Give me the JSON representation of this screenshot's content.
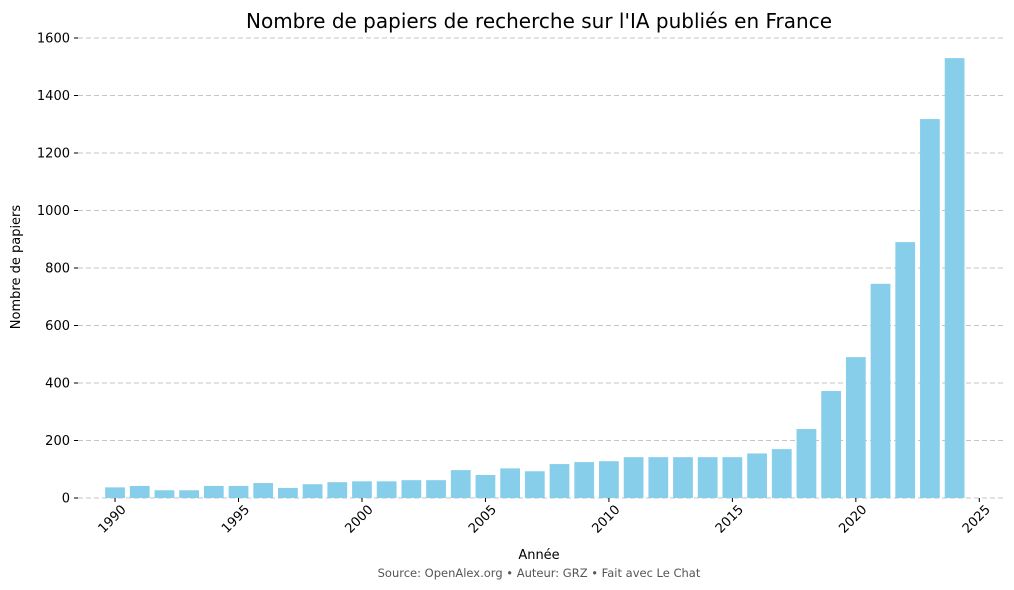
{
  "chart_data": {
    "type": "bar",
    "title": "Nombre de papiers de recherche sur l'IA publiés en France",
    "xlabel": "Année",
    "ylabel": "Nombre de papiers",
    "source": "Source: OpenAlex.org • Auteur: GRZ • Fait avec Le Chat",
    "color": "#87CEEB",
    "grid": "horizontal dashed",
    "ylim": [
      0,
      1600
    ],
    "xlim": [
      1988.5,
      2026
    ],
    "yticks": [
      0,
      200,
      400,
      600,
      800,
      1000,
      1200,
      1400,
      1600
    ],
    "xticks": [
      1990,
      1995,
      2000,
      2005,
      2010,
      2015,
      2020,
      2025
    ],
    "x": [
      1990,
      1991,
      1992,
      1993,
      1994,
      1995,
      1996,
      1997,
      1998,
      1999,
      2000,
      2001,
      2002,
      2003,
      2004,
      2005,
      2006,
      2007,
      2008,
      2009,
      2010,
      2011,
      2012,
      2013,
      2014,
      2015,
      2016,
      2017,
      2018,
      2019,
      2020,
      2021,
      2022,
      2023,
      2024
    ],
    "values": [
      37,
      42,
      27,
      27,
      42,
      42,
      52,
      35,
      48,
      55,
      58,
      58,
      62,
      62,
      97,
      80,
      103,
      93,
      118,
      125,
      128,
      142,
      142,
      142,
      142,
      142,
      155,
      170,
      240,
      372,
      490,
      745,
      890,
      1318,
      1530
    ]
  }
}
